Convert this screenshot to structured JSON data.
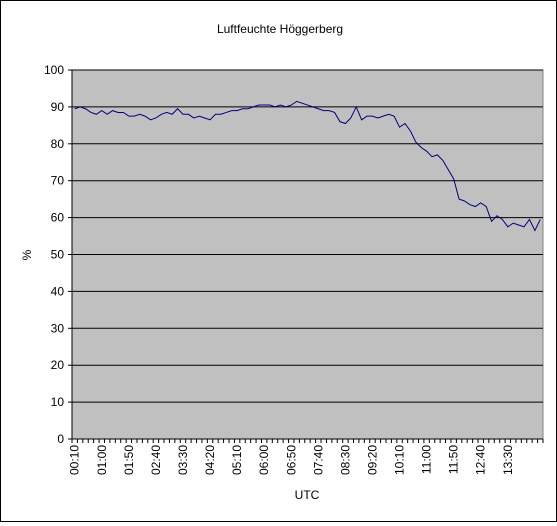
{
  "chart_data": {
    "type": "line",
    "title": "Luftfeuchte Höggerberg",
    "xlabel": "UTC",
    "ylabel": "%",
    "ylim": [
      0,
      100
    ],
    "yticks": [
      0,
      10,
      20,
      30,
      40,
      50,
      60,
      70,
      80,
      90,
      100
    ],
    "grid": true,
    "legend": "none",
    "colors": {
      "plot_background": "#c0c0c0",
      "line": "#000080",
      "gridline": "#000000"
    },
    "x_tick_labels": [
      "00:10",
      "01:00",
      "01:50",
      "02:40",
      "03:30",
      "04:20",
      "05:10",
      "06:00",
      "06:50",
      "07:40",
      "08:30",
      "09:20",
      "10:10",
      "11:00",
      "11:50",
      "12:40",
      "13:30"
    ],
    "series": [
      {
        "values": [
          89.5,
          90.0,
          89.5,
          88.5,
          88.0,
          89.0,
          88.0,
          89.0,
          88.5,
          88.5,
          87.5,
          87.5,
          88.0,
          87.5,
          86.5,
          87.0,
          88.0,
          88.5,
          88.0,
          89.5,
          88.0,
          88.0,
          87.0,
          87.5,
          87.0,
          86.5,
          88.0,
          88.0,
          88.5,
          89.0,
          89.0,
          89.5,
          89.5,
          90.0,
          90.5,
          90.5,
          90.5,
          90.0,
          90.5,
          90.0,
          90.5,
          91.5,
          91.0,
          90.5,
          90.0,
          89.5,
          89.0,
          89.0,
          88.5,
          86.0,
          85.5,
          87.0,
          90.0,
          86.5,
          87.5,
          87.5,
          87.0,
          87.5,
          88.0,
          87.5,
          84.5,
          85.5,
          83.5,
          80.5,
          79.0,
          78.0,
          76.5,
          77.0,
          75.5,
          73.0,
          70.5,
          65.0,
          64.5,
          63.5,
          63.0,
          64.0,
          63.0,
          59.0,
          60.5,
          59.5,
          57.5,
          58.5,
          58.0,
          57.5,
          59.5,
          56.5,
          59.5
        ]
      }
    ]
  }
}
